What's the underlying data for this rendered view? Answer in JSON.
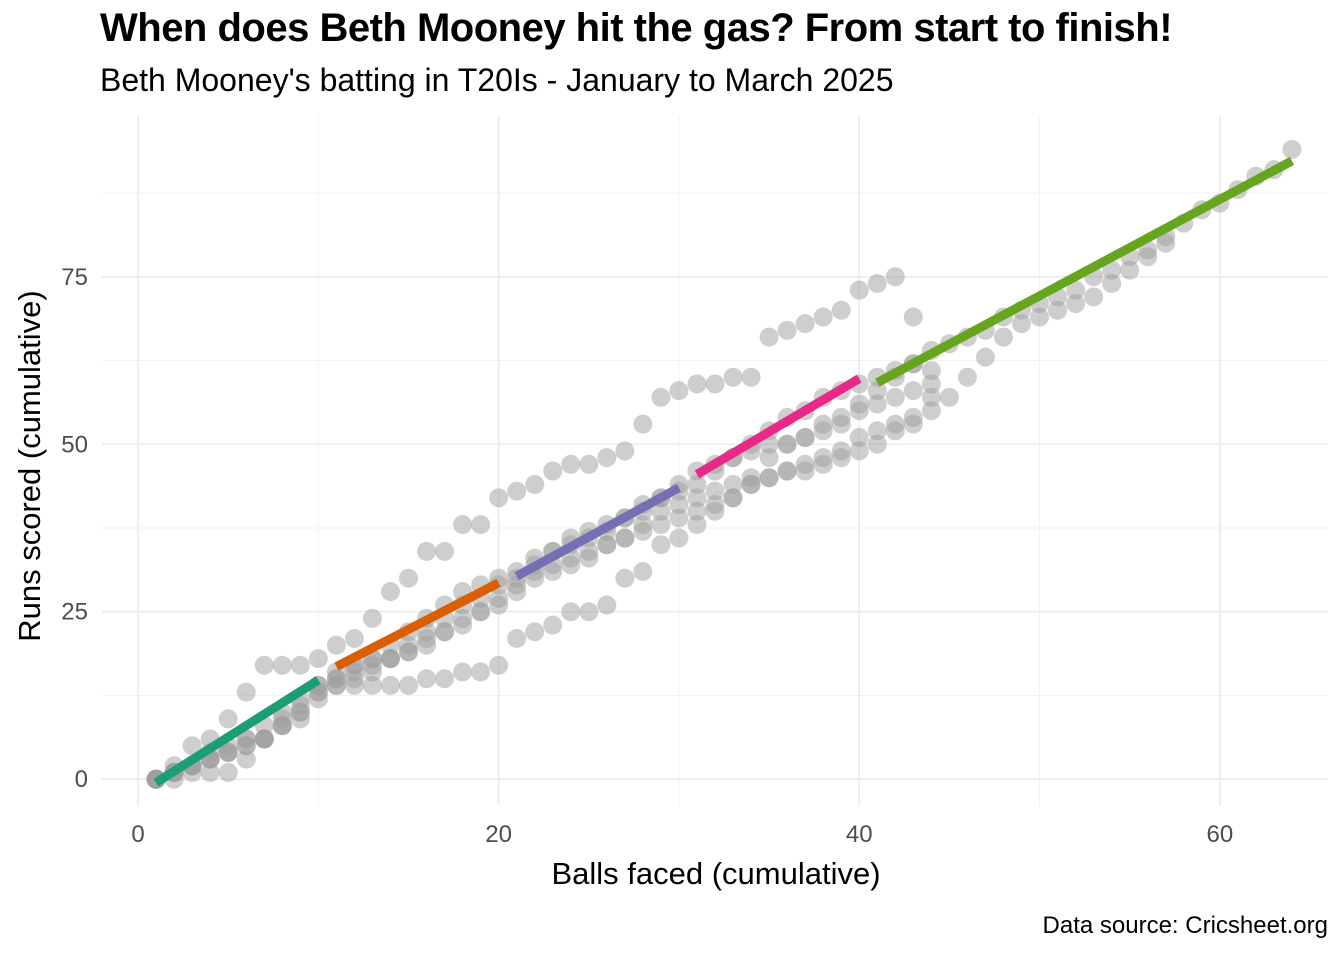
{
  "chart_data": {
    "type": "scatter",
    "title": "When does Beth Mooney hit the gas? From start to finish!",
    "subtitle": "Beth Mooney's batting in T20Is - January to March 2025",
    "xlabel": "Balls faced (cumulative)",
    "ylabel": "Runs scored (cumulative)",
    "caption": "Data source: Cricsheet.org",
    "xlim": [
      -2,
      66
    ],
    "ylim": [
      -4,
      99
    ],
    "x_ticks": [
      0,
      20,
      40,
      60
    ],
    "y_ticks": [
      0,
      25,
      50,
      75
    ],
    "grid": true,
    "point_color": "#9e9e9e",
    "innings": [
      {
        "x": [
          1,
          2,
          3,
          4,
          5,
          6,
          7,
          8,
          9,
          10,
          11,
          12,
          13,
          14,
          15,
          16,
          17,
          18,
          19,
          20,
          21,
          22,
          23,
          24,
          25,
          26,
          27,
          28,
          29,
          30,
          31,
          32,
          33,
          34,
          35,
          36,
          37,
          38,
          39,
          40,
          41,
          42,
          43,
          44,
          45,
          46,
          47,
          48,
          49,
          50,
          51,
          52,
          53,
          54,
          55,
          56,
          57,
          58,
          59,
          60,
          61,
          62,
          63,
          64
        ],
        "y": [
          0,
          1,
          2,
          3,
          4,
          5,
          6,
          8,
          9,
          12,
          14,
          15,
          16,
          18,
          20,
          22,
          24,
          26,
          27,
          29,
          30,
          32,
          34,
          35,
          36,
          37,
          39,
          41,
          42,
          43,
          44,
          46,
          48,
          50,
          52,
          54,
          55,
          57,
          58,
          59,
          60,
          61,
          62,
          64,
          65,
          66,
          67,
          69,
          70,
          71,
          72,
          73,
          75,
          76,
          78,
          79,
          81,
          83,
          85,
          86,
          88,
          90,
          91,
          94
        ]
      },
      {
        "x": [
          1,
          2,
          3,
          4,
          5,
          6,
          7,
          8,
          9,
          10,
          11,
          12,
          13,
          14,
          15,
          16,
          17,
          18,
          19,
          20,
          21,
          22,
          23,
          24,
          25,
          26,
          27,
          28,
          29,
          30,
          31,
          32,
          33,
          34,
          35,
          36,
          37,
          38,
          39,
          40,
          41,
          42,
          43,
          44,
          45,
          46,
          47,
          48,
          49,
          50,
          51,
          52,
          53,
          54,
          55,
          56,
          57
        ],
        "y": [
          0,
          1,
          2,
          4,
          5,
          6,
          8,
          9,
          11,
          13,
          15,
          16,
          17,
          18,
          19,
          20,
          22,
          23,
          25,
          27,
          28,
          30,
          31,
          32,
          33,
          35,
          36,
          37,
          38,
          39,
          40,
          41,
          42,
          44,
          45,
          46,
          47,
          48,
          49,
          51,
          52,
          53,
          54,
          55,
          57,
          60,
          63,
          66,
          68,
          69,
          70,
          71,
          72,
          74,
          76,
          78,
          80
        ]
      },
      {
        "x": [
          1,
          2,
          3,
          4,
          5,
          6,
          7,
          8,
          9,
          10,
          11,
          12,
          13,
          14,
          15,
          16,
          17,
          18,
          19,
          20,
          21,
          22,
          23,
          24,
          25,
          26,
          27,
          28,
          29,
          30,
          31,
          32,
          33,
          34,
          35,
          36,
          37,
          38,
          39,
          40,
          41,
          42,
          43,
          44
        ],
        "y": [
          0,
          0,
          1,
          1,
          1,
          3,
          6,
          10,
          12,
          14,
          14,
          14,
          14,
          14,
          14,
          15,
          15,
          16,
          16,
          17,
          21,
          22,
          23,
          25,
          25,
          26,
          30,
          31,
          35,
          36,
          38,
          40,
          42,
          44,
          45,
          46,
          46,
          47,
          48,
          49,
          50,
          52,
          53,
          57
        ]
      },
      {
        "x": [
          1,
          2,
          3,
          4,
          5,
          6,
          7,
          8,
          9,
          10,
          11,
          12,
          13,
          14,
          15,
          16,
          17,
          18,
          19,
          20,
          21,
          22,
          23,
          24,
          25,
          26,
          27,
          28,
          29,
          30,
          31,
          32,
          33,
          34,
          35,
          36,
          37,
          38,
          39,
          40,
          41,
          42,
          43
        ],
        "y": [
          0,
          2,
          5,
          6,
          9,
          13,
          17,
          17,
          17,
          18,
          20,
          21,
          24,
          28,
          30,
          34,
          34,
          38,
          38,
          42,
          43,
          44,
          46,
          47,
          47,
          48,
          49,
          53,
          57,
          58,
          59,
          59,
          60,
          60,
          66,
          67,
          68,
          69,
          70,
          73,
          74,
          75,
          69
        ]
      },
      {
        "x": [
          1,
          2,
          3,
          4,
          5,
          6,
          7,
          8,
          9,
          10,
          11,
          12,
          13,
          14,
          15,
          16,
          17,
          18,
          19,
          20,
          21,
          22,
          23,
          24,
          25,
          26,
          27,
          28,
          29,
          30,
          31,
          32,
          33,
          34,
          35,
          36,
          37,
          38,
          39,
          40,
          41,
          42,
          43,
          44
        ],
        "y": [
          0,
          1,
          2,
          3,
          4,
          6,
          6,
          8,
          10,
          14,
          16,
          17,
          18,
          18,
          19,
          21,
          22,
          24,
          25,
          26,
          29,
          31,
          32,
          33,
          34,
          35,
          36,
          38,
          40,
          41,
          42,
          43,
          44,
          45,
          48,
          50,
          51,
          53,
          54,
          56,
          58,
          60,
          62,
          61
        ]
      },
      {
        "x": [
          1,
          2,
          3,
          4,
          5,
          6,
          7,
          8,
          9,
          10,
          11,
          12,
          13,
          14,
          15,
          16,
          17,
          18,
          19,
          20,
          21,
          22,
          23,
          24,
          25,
          26,
          27,
          28,
          29,
          30,
          31,
          32,
          33,
          34,
          35,
          36,
          37,
          38,
          39,
          40,
          41,
          42,
          43,
          44
        ],
        "y": [
          0,
          1,
          2,
          3,
          4,
          5,
          6,
          8,
          10,
          13,
          15,
          17,
          18,
          20,
          22,
          24,
          26,
          28,
          29,
          30,
          31,
          33,
          34,
          36,
          37,
          38,
          39,
          40,
          42,
          44,
          46,
          47,
          48,
          49,
          50,
          50,
          51,
          52,
          53,
          55,
          56,
          57,
          58,
          59
        ]
      }
    ],
    "segments": [
      {
        "x0": 1,
        "x1": 10,
        "y0": -0.5,
        "y1": 14.8,
        "color": "#1b9e77"
      },
      {
        "x0": 11,
        "x1": 20,
        "y0": 16.8,
        "y1": 29.3,
        "color": "#d95f02"
      },
      {
        "x0": 21,
        "x1": 30,
        "y0": 30.3,
        "y1": 43.5,
        "color": "#7570b3"
      },
      {
        "x0": 31,
        "x1": 40,
        "y0": 45.5,
        "y1": 59.8,
        "color": "#e7298a"
      },
      {
        "x0": 41,
        "x1": 64,
        "y0": 59.2,
        "y1": 92.3,
        "color": "#66a61e"
      }
    ]
  }
}
